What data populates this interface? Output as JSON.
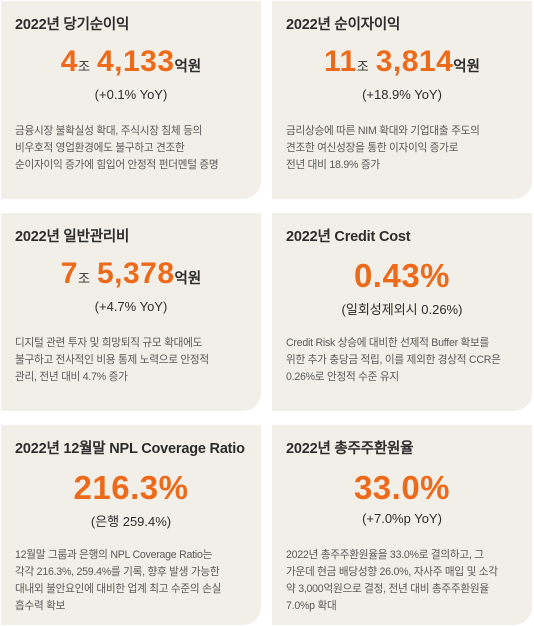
{
  "cards": [
    {
      "title": "2022년 당기순이익",
      "n1": "4",
      "u1": "조",
      "n2": "4,133",
      "u2": "억원",
      "sub": "(+0.1% YoY)",
      "desc": [
        "금융시장 불확실성 확대, 주식시장 침체 등의",
        "비우호적 영업환경에도 불구하고 견조한",
        "순이자이익 증가에 힘입어 안정적 펀더멘털 증명"
      ]
    },
    {
      "title": "2022년 순이자이익",
      "n1": "11",
      "u1": "조",
      "n2": "3,814",
      "u2": "억원",
      "sub": "(+18.9% YoY)",
      "desc": [
        "금리상승에 따른 NIM 확대와 기업대출 주도의",
        "견조한 여신성장을 통한 이자이익 증가로",
        "전년 대비 18.9% 증가"
      ]
    },
    {
      "title": "2022년 일반관리비",
      "n1": "7",
      "u1": "조",
      "n2": "5,378",
      "u2": "억원",
      "sub": "(+4.7% YoY)",
      "desc": [
        "디지털 관련 투자 및 희망퇴직 규모 확대에도",
        "불구하고 전사적인 비용 통제 노력으로 안정적",
        "관리, 전년 대비 4.7% 증가"
      ]
    },
    {
      "title": "2022년 Credit Cost",
      "big": "0.43%",
      "sub": "(일회성제외시 0.26%)",
      "desc": [
        "Credit Risk 상승에 대비한 선제적 Buffer 확보를",
        "위한 추가 충당금 적립, 이를 제외한 경상적 CCR은",
        "0.26%로 안정적 수준 유지"
      ]
    },
    {
      "title": "2022년 12월말 NPL Coverage Ratio",
      "big": "216.3%",
      "sub": "(은행 259.4%)",
      "desc": [
        "12월말 그룹과 은행의 NPL Coverage Ratio는",
        "각각 216.3%, 259.4%를 기록, 향후 발생 가능한",
        "대내외 불안요인에 대비한 업계 최고 수준의 손실",
        "흡수력 확보"
      ]
    },
    {
      "title": "2022년 총주주환원율",
      "big": "33.0%",
      "sub": "(+7.0%p YoY)",
      "desc": [
        "2022년 총주주환원율을 33.0%로 결의하고, 그",
        "가운데 현금 배당성향 26.0%, 자사주 매입 및 소각",
        "약 3,000억원으로 결정, 전년 대비 총주주환원율",
        "7.0%p 확대"
      ]
    }
  ]
}
